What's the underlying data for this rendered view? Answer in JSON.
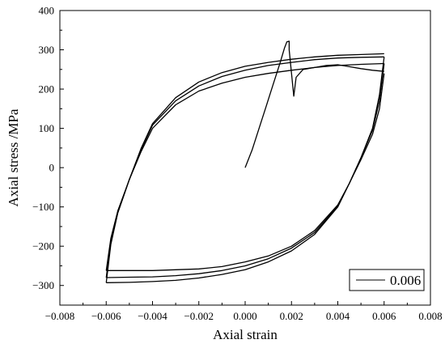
{
  "chart_data": {
    "type": "line",
    "title": "",
    "xlabel": "Axial strain",
    "ylabel": "Axial stress /MPa",
    "xlim": [
      -0.008,
      0.008
    ],
    "ylim": [
      -350,
      400
    ],
    "x_ticks": [
      -0.008,
      -0.006,
      -0.004,
      -0.002,
      0.0,
      0.002,
      0.004,
      0.006,
      0.008
    ],
    "x_tick_labels": [
      "−0.008",
      "−0.006",
      "−0.004",
      "−0.002",
      "0.000",
      "0.002",
      "0.004",
      "0.006",
      "0.008"
    ],
    "y_ticks": [
      -300,
      -200,
      -100,
      0,
      100,
      200,
      300,
      400
    ],
    "y_tick_labels": [
      "−300",
      "−200",
      "−100",
      "0",
      "100",
      "200",
      "300",
      "400"
    ],
    "grid": false,
    "legend_position": "bottom-right",
    "series": [
      {
        "name": "0.006",
        "color": "#000000",
        "segments": [
          {
            "part": "initial-loading",
            "x": [
              0.0,
              0.0003,
              0.0006,
              0.0009,
              0.0012,
              0.0015,
              0.0017,
              0.0018,
              0.0019,
              0.0019,
              0.002,
              0.0021,
              0.0022,
              0.0025,
              0.003,
              0.0035,
              0.004,
              0.0045,
              0.005,
              0.0055,
              0.006
            ],
            "y": [
              0,
              45,
              100,
              155,
              210,
              265,
              305,
              320,
              322,
              300,
              240,
              182,
              230,
              250,
              255,
              260,
              262,
              257,
              252,
              248,
              245
            ]
          },
          {
            "part": "unloading-1",
            "x": [
              0.006,
              0.0058,
              0.0055,
              0.005,
              0.0045,
              0.004,
              0.003,
              0.002,
              0.001,
              0.0,
              -0.001,
              -0.002,
              -0.003,
              -0.004,
              -0.005,
              -0.006
            ],
            "y": [
              240,
              150,
              85,
              20,
              -40,
              -95,
              -160,
              -200,
              -225,
              -240,
              -252,
              -258,
              -260,
              -262,
              -262,
              -262
            ]
          },
          {
            "part": "reloading-1",
            "x": [
              -0.006,
              -0.0058,
              -0.0055,
              -0.005,
              -0.0045,
              -0.004,
              -0.003,
              -0.002,
              -0.001,
              0.0,
              0.001,
              0.002,
              0.003,
              0.004,
              0.005,
              0.006
            ],
            "y": [
              -262,
              -180,
              -110,
              -30,
              40,
              100,
              160,
              195,
              215,
              230,
              240,
              248,
              255,
              260,
              263,
              265
            ]
          },
          {
            "part": "unloading-2",
            "x": [
              0.006,
              0.0058,
              0.0055,
              0.005,
              0.0045,
              0.004,
              0.003,
              0.002,
              0.001,
              0.0,
              -0.001,
              -0.002,
              -0.003,
              -0.004,
              -0.005,
              -0.006
            ],
            "y": [
              265,
              170,
              95,
              25,
              -40,
              -98,
              -165,
              -205,
              -232,
              -250,
              -262,
              -270,
              -275,
              -278,
              -279,
              -280
            ]
          },
          {
            "part": "reloading-2",
            "x": [
              -0.006,
              -0.0058,
              -0.0055,
              -0.005,
              -0.0045,
              -0.004,
              -0.003,
              -0.002,
              -0.001,
              0.0,
              0.001,
              0.002,
              0.003,
              0.004,
              0.005,
              0.006
            ],
            "y": [
              -280,
              -190,
              -115,
              -30,
              45,
              108,
              170,
              208,
              232,
              248,
              260,
              268,
              275,
              279,
              281,
              282
            ]
          },
          {
            "part": "unloading-3",
            "x": [
              0.006,
              0.0058,
              0.0055,
              0.005,
              0.0045,
              0.004,
              0.003,
              0.002,
              0.001,
              0.0,
              -0.001,
              -0.002,
              -0.003,
              -0.004,
              -0.005,
              -0.006
            ],
            "y": [
              282,
              185,
              100,
              25,
              -40,
              -100,
              -170,
              -212,
              -240,
              -260,
              -272,
              -281,
              -287,
              -290,
              -292,
              -293
            ]
          },
          {
            "part": "reloading-3",
            "x": [
              -0.006,
              -0.0058,
              -0.0055,
              -0.005,
              -0.0045,
              -0.004,
              -0.003,
              -0.002,
              -0.001,
              0.0,
              0.001,
              0.002,
              0.003,
              0.004,
              0.005,
              0.006
            ],
            "y": [
              -293,
              -195,
              -115,
              -30,
              48,
              112,
              178,
              218,
              242,
              258,
              268,
              276,
              282,
              286,
              288,
              290
            ]
          }
        ]
      }
    ]
  }
}
